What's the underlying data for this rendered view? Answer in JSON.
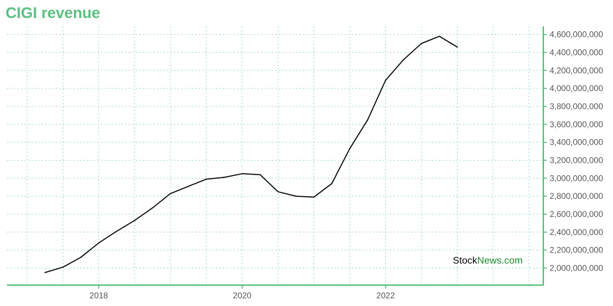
{
  "chart_data": {
    "type": "line",
    "title": "CIGI revenue",
    "xlabel": "",
    "ylabel": "",
    "x_ticks": [
      {
        "label": "2018",
        "value": 2018.0
      },
      {
        "label": "2020",
        "value": 2020.0
      },
      {
        "label": "2022",
        "value": 2022.0
      }
    ],
    "y_ticks": [
      "2,000,000,000",
      "2,200,000,000",
      "2,400,000,000",
      "2,600,000,000",
      "2,800,000,000",
      "3,000,000,000",
      "3,200,000,000",
      "3,400,000,000",
      "3,600,000,000",
      "3,800,000,000",
      "4,000,000,000",
      "4,200,000,000",
      "4,400,000,000",
      "4,600,000,000"
    ],
    "xlim": [
      2016.72,
      2024.2
    ],
    "ylim": [
      1810000000,
      4690000000
    ],
    "grid": true,
    "series": [
      {
        "color": "#000000",
        "points": [
          {
            "x": 2017.25,
            "y": 1950000000
          },
          {
            "x": 2017.5,
            "y": 2010000000
          },
          {
            "x": 2017.75,
            "y": 2120000000
          },
          {
            "x": 2018.0,
            "y": 2280000000
          },
          {
            "x": 2018.25,
            "y": 2410000000
          },
          {
            "x": 2018.5,
            "y": 2530000000
          },
          {
            "x": 2018.75,
            "y": 2670000000
          },
          {
            "x": 2019.0,
            "y": 2830000000
          },
          {
            "x": 2019.25,
            "y": 2910000000
          },
          {
            "x": 2019.5,
            "y": 2990000000
          },
          {
            "x": 2019.75,
            "y": 3010000000
          },
          {
            "x": 2020.0,
            "y": 3050000000
          },
          {
            "x": 2020.25,
            "y": 3040000000
          },
          {
            "x": 2020.5,
            "y": 2850000000
          },
          {
            "x": 2020.75,
            "y": 2800000000
          },
          {
            "x": 2021.0,
            "y": 2790000000
          },
          {
            "x": 2021.25,
            "y": 2940000000
          },
          {
            "x": 2021.5,
            "y": 3330000000
          },
          {
            "x": 2021.75,
            "y": 3650000000
          },
          {
            "x": 2022.0,
            "y": 4090000000
          },
          {
            "x": 2022.25,
            "y": 4320000000
          },
          {
            "x": 2022.5,
            "y": 4500000000
          },
          {
            "x": 2022.75,
            "y": 4580000000
          },
          {
            "x": 2023.0,
            "y": 4460000000
          }
        ]
      }
    ],
    "colors": {
      "title": "#5bbf7f",
      "axis": "#5bbf7f",
      "grid": "#a8dcc0",
      "line": "#000000",
      "watermark_brand": "#1a8a2e"
    },
    "watermark": {
      "part1": "Stock",
      "part2": "News",
      "part3": ".com"
    }
  }
}
